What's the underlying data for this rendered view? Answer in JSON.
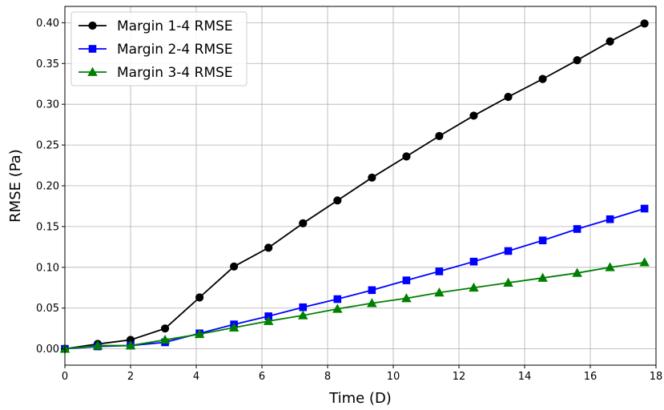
{
  "chart_data": {
    "type": "line",
    "title": "",
    "xlabel": "Time (D)",
    "ylabel": "RMSE (Pa)",
    "xlim": [
      0,
      18
    ],
    "ylim": [
      -0.02,
      0.42
    ],
    "xticks": [
      0,
      2,
      4,
      6,
      8,
      10,
      12,
      14,
      16,
      18
    ],
    "xtick_labels": [
      "0",
      "2",
      "4",
      "6",
      "8",
      "10",
      "12",
      "14",
      "16",
      "18"
    ],
    "yticks": [
      0.0,
      0.05,
      0.1,
      0.15,
      0.2,
      0.25,
      0.3,
      0.35,
      0.4
    ],
    "ytick_labels": [
      "0.00",
      "0.05",
      "0.10",
      "0.15",
      "0.20",
      "0.25",
      "0.30",
      "0.35",
      "0.40"
    ],
    "grid": true,
    "legend_position": "top-left",
    "x": [
      0,
      1.0,
      2.0,
      3.05,
      4.1,
      5.15,
      6.2,
      7.25,
      8.3,
      9.35,
      10.4,
      11.4,
      12.45,
      13.5,
      14.55,
      15.6,
      16.6,
      17.65
    ],
    "series": [
      {
        "name": "Margin 1-4 RMSE",
        "color": "#000000",
        "marker": "circle",
        "values": [
          0.0,
          0.006,
          0.011,
          0.025,
          0.063,
          0.101,
          0.124,
          0.154,
          0.182,
          0.21,
          0.236,
          0.261,
          0.286,
          0.309,
          0.331,
          0.354,
          0.377,
          0.399
        ]
      },
      {
        "name": "Margin 2-4 RMSE",
        "color": "#0000ff",
        "marker": "square",
        "values": [
          0.0,
          0.003,
          0.004,
          0.008,
          0.019,
          0.03,
          0.04,
          0.051,
          0.061,
          0.072,
          0.084,
          0.095,
          0.107,
          0.12,
          0.133,
          0.147,
          0.159,
          0.172
        ]
      },
      {
        "name": "Margin 3-4 RMSE",
        "color": "#008000",
        "marker": "triangle",
        "values": [
          0.0,
          0.004,
          0.004,
          0.011,
          0.018,
          0.026,
          0.034,
          0.041,
          0.049,
          0.056,
          0.062,
          0.069,
          0.075,
          0.081,
          0.087,
          0.093,
          0.1,
          0.106
        ]
      }
    ]
  }
}
